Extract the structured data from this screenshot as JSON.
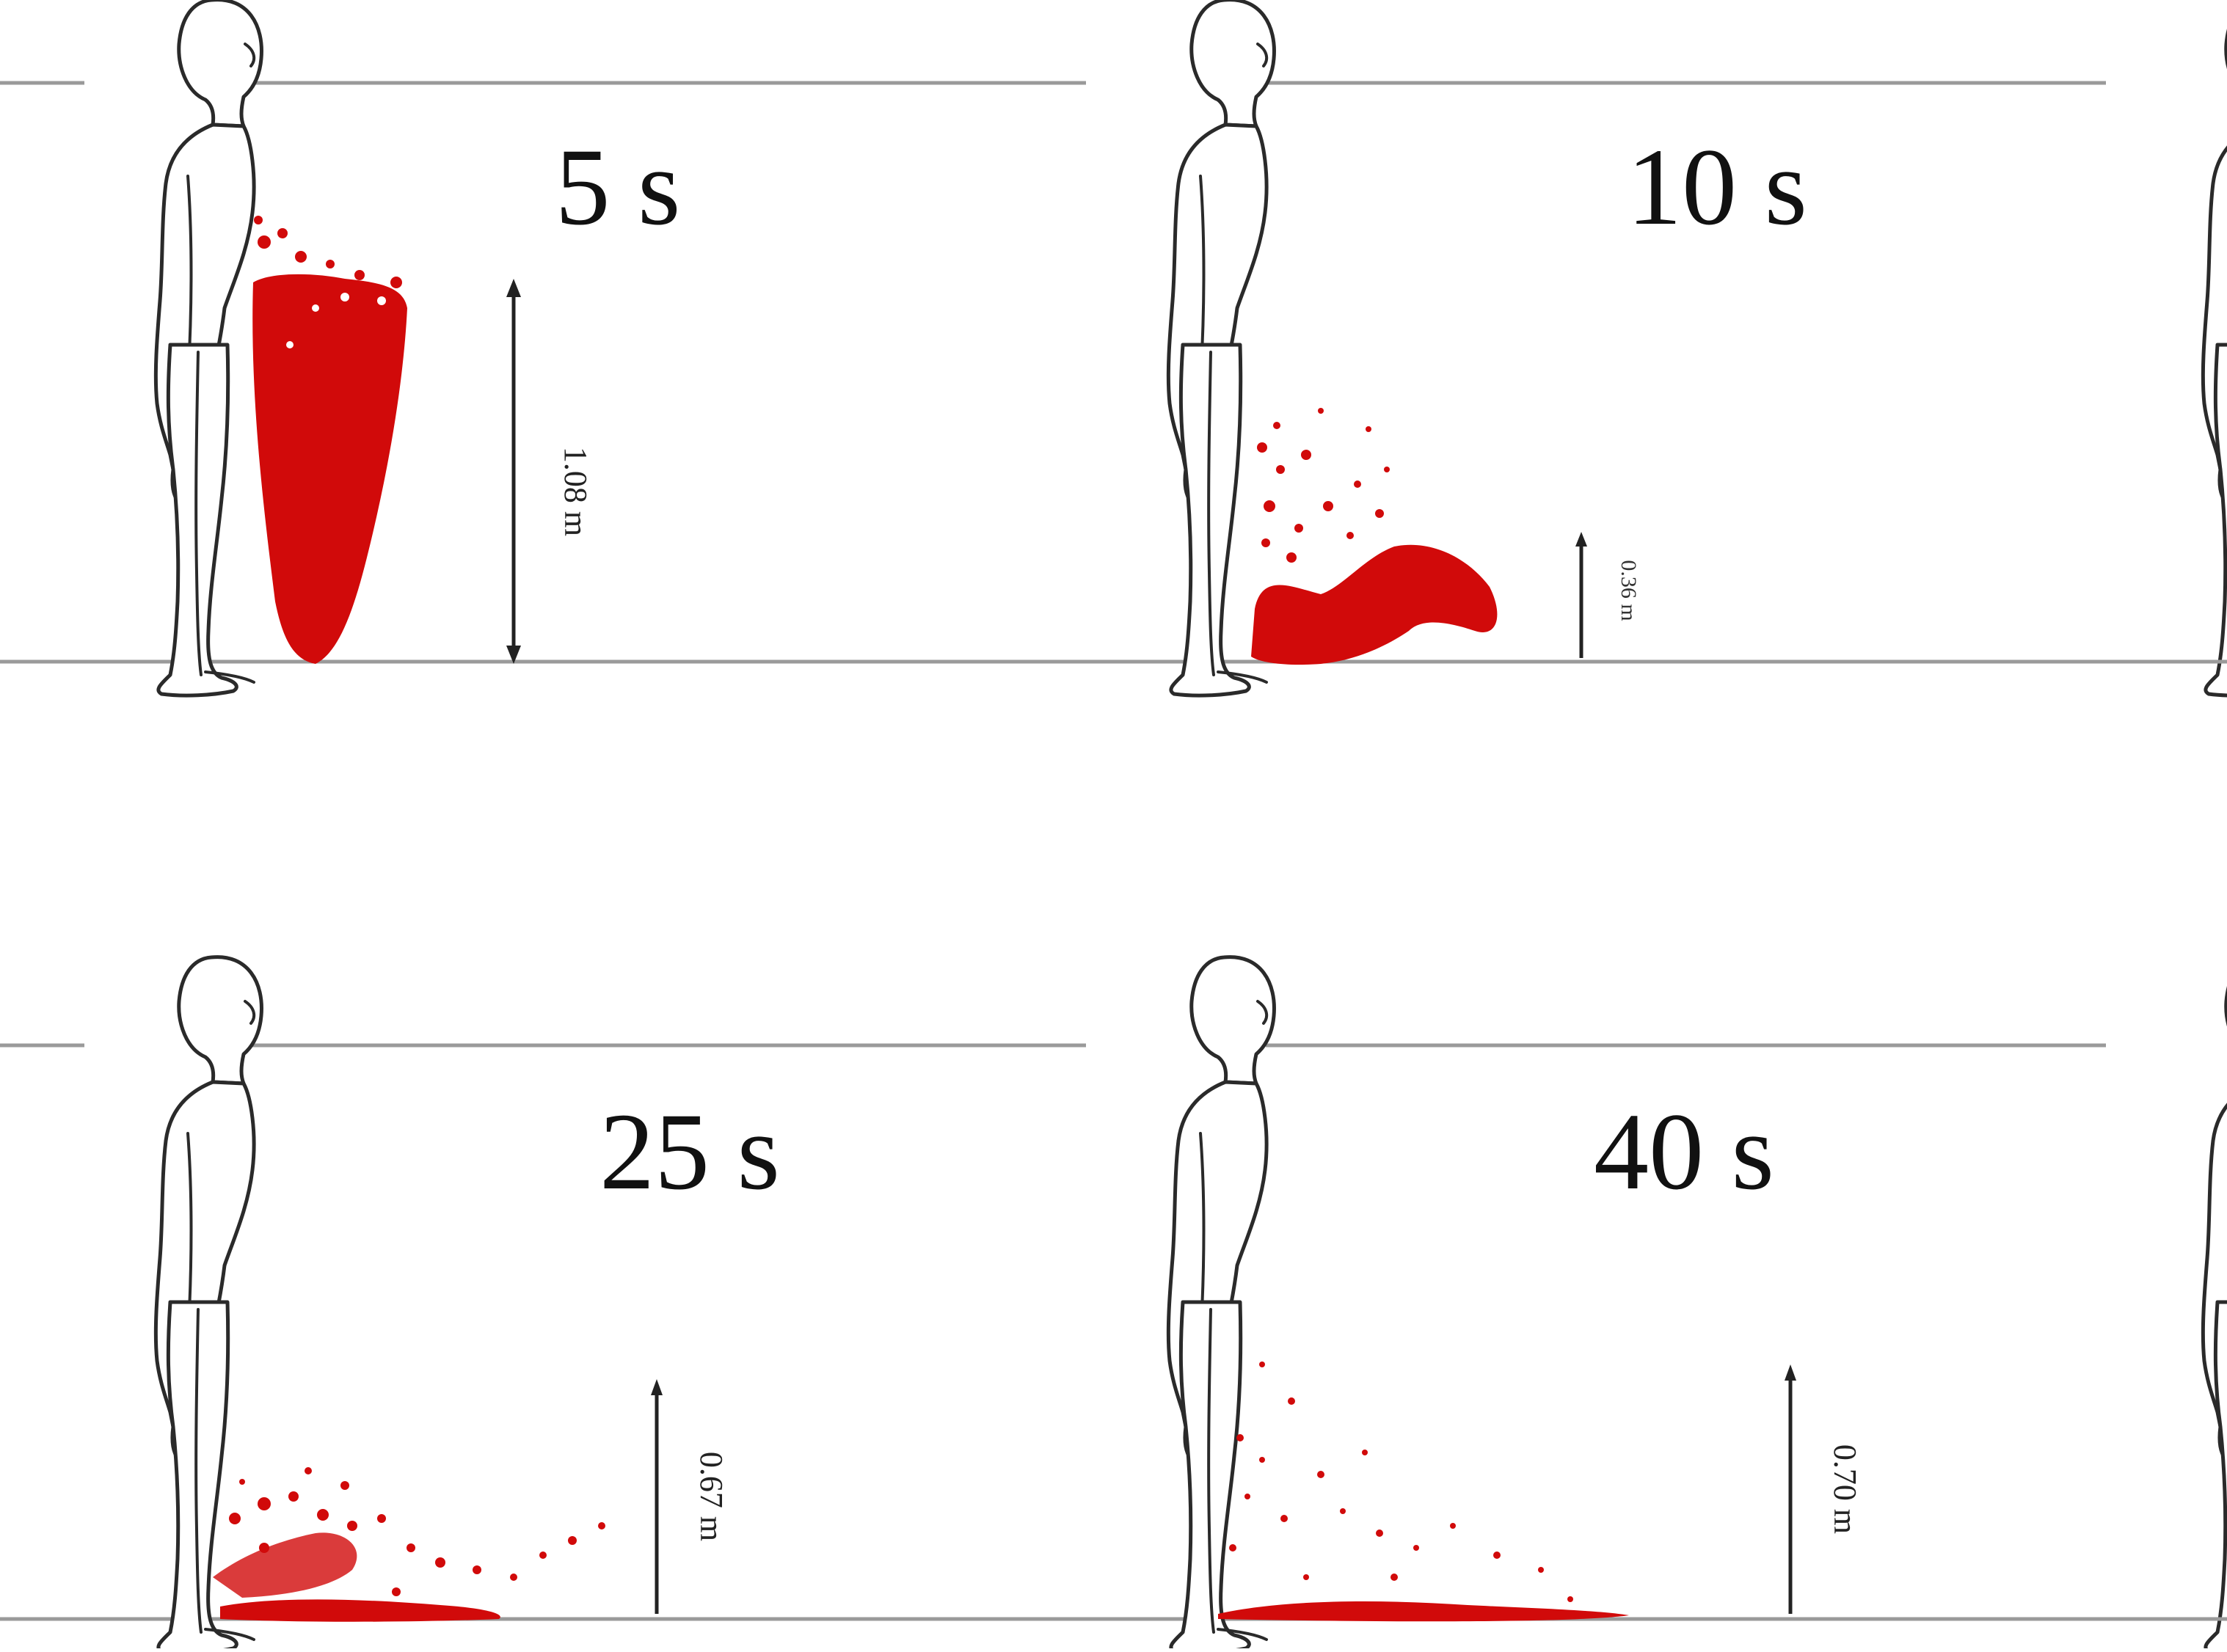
{
  "figure": {
    "panels": [
      {
        "id": "p5",
        "time_label": "5 s",
        "height_label": "1.08 m",
        "height_m": 1.08
      },
      {
        "id": "p10",
        "time_label": "10 s",
        "height_label": "0.36 m",
        "height_m": 0.36
      },
      {
        "id": "p25",
        "time_label": "25 s",
        "height_label": "0.67 m",
        "height_m": 0.67
      },
      {
        "id": "p40",
        "time_label": "40 s",
        "height_label": "0.70 m",
        "height_m": 0.7
      }
    ],
    "colors": {
      "droplets": "#d10a0a",
      "reference_lines": "#9a9a9a",
      "text": "#111111"
    },
    "icons": [
      "standing-person-outline"
    ]
  }
}
